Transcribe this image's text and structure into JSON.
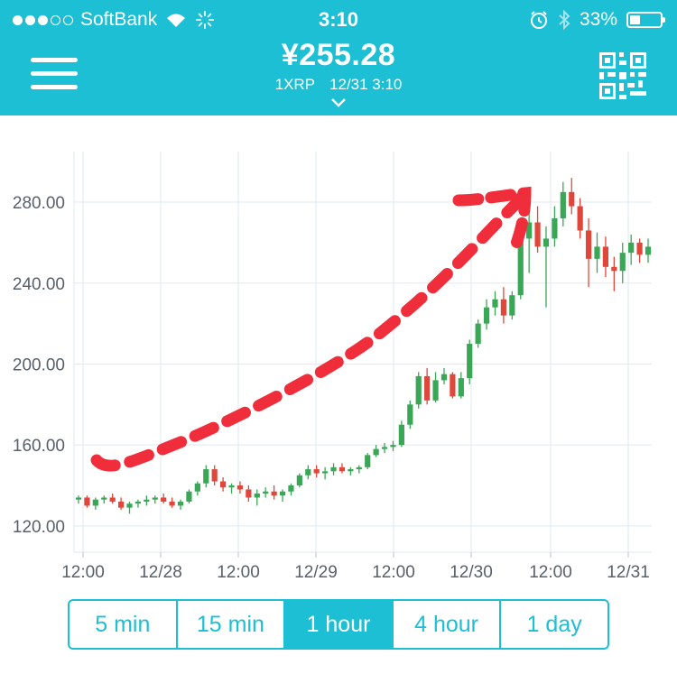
{
  "status_bar": {
    "carrier": "SoftBank",
    "time": "3:10",
    "battery_text": "33%",
    "battery_level": 0.33
  },
  "header": {
    "price": "¥255.28",
    "pair": "1XRP",
    "timestamp": "12/31 3:10"
  },
  "colors": {
    "accent": "#1cbfd3",
    "up": "#3aa757",
    "down": "#e0473a",
    "annotation": "#f02d3a"
  },
  "icons": [
    "menu-icon",
    "qr-code-icon",
    "wifi-icon",
    "activity-icon",
    "alarm-icon",
    "bluetooth-icon",
    "battery-icon",
    "chevron-down-icon"
  ],
  "chart_data": {
    "type": "candlestick",
    "title": "",
    "x_tick_labels": [
      "12:00",
      "12/28",
      "12:00",
      "12/29",
      "12:00",
      "12/30",
      "12:00",
      "12/31"
    ],
    "y_tick_labels": [
      "120.00",
      "160.00",
      "200.00",
      "240.00",
      "280.00"
    ],
    "ylim": [
      107,
      305
    ],
    "interval": "1 hour",
    "grid": true,
    "annotation": "hand-drawn red dashed upward arrow",
    "ohlc": [
      [
        133,
        135,
        131,
        134
      ],
      [
        134,
        135,
        129,
        130
      ],
      [
        130,
        134,
        128,
        133
      ],
      [
        133,
        135,
        131,
        134
      ],
      [
        134,
        136,
        131,
        132
      ],
      [
        132,
        134,
        128,
        129
      ],
      [
        129,
        132,
        126,
        131
      ],
      [
        131,
        133,
        129,
        132
      ],
      [
        132,
        135,
        130,
        133
      ],
      [
        133,
        135,
        131,
        134
      ],
      [
        134,
        136,
        131,
        132
      ],
      [
        132,
        134,
        129,
        130
      ],
      [
        130,
        133,
        128,
        132
      ],
      [
        132,
        138,
        131,
        137
      ],
      [
        137,
        142,
        135,
        141
      ],
      [
        141,
        150,
        139,
        148
      ],
      [
        148,
        150,
        140,
        142
      ],
      [
        142,
        144,
        137,
        139
      ],
      [
        139,
        141,
        136,
        140
      ],
      [
        140,
        142,
        136,
        138
      ],
      [
        138,
        140,
        132,
        134
      ],
      [
        134,
        138,
        130,
        136
      ],
      [
        136,
        139,
        134,
        137
      ],
      [
        137,
        140,
        133,
        135
      ],
      [
        135,
        138,
        132,
        137
      ],
      [
        137,
        141,
        135,
        140
      ],
      [
        140,
        146,
        139,
        145
      ],
      [
        145,
        150,
        143,
        148
      ],
      [
        148,
        150,
        144,
        146
      ],
      [
        146,
        149,
        143,
        147
      ],
      [
        147,
        151,
        145,
        149
      ],
      [
        149,
        151,
        146,
        147
      ],
      [
        147,
        149,
        145,
        148
      ],
      [
        148,
        150,
        146,
        149
      ],
      [
        149,
        156,
        148,
        155
      ],
      [
        155,
        160,
        154,
        158
      ],
      [
        158,
        161,
        156,
        159
      ],
      [
        159,
        162,
        157,
        160
      ],
      [
        160,
        172,
        159,
        170
      ],
      [
        170,
        182,
        168,
        180
      ],
      [
        180,
        196,
        178,
        194
      ],
      [
        194,
        198,
        180,
        182
      ],
      [
        182,
        196,
        181,
        192
      ],
      [
        192,
        198,
        190,
        195
      ],
      [
        195,
        196,
        183,
        184
      ],
      [
        184,
        196,
        183,
        193
      ],
      [
        193,
        212,
        190,
        210
      ],
      [
        210,
        222,
        208,
        220
      ],
      [
        220,
        232,
        217,
        228
      ],
      [
        228,
        236,
        224,
        232
      ],
      [
        232,
        238,
        220,
        224
      ],
      [
        224,
        236,
        222,
        234
      ],
      [
        234,
        266,
        232,
        262
      ],
      [
        262,
        282,
        245,
        270
      ],
      [
        270,
        278,
        255,
        258
      ],
      [
        258,
        268,
        228,
        262
      ],
      [
        262,
        278,
        258,
        272
      ],
      [
        272,
        290,
        268,
        285
      ],
      [
        285,
        292,
        274,
        278
      ],
      [
        278,
        282,
        262,
        266
      ],
      [
        266,
        272,
        238,
        252
      ],
      [
        252,
        265,
        245,
        258
      ],
      [
        258,
        263,
        243,
        248
      ],
      [
        248,
        253,
        236,
        246
      ],
      [
        246,
        260,
        240,
        255
      ],
      [
        255,
        264,
        249,
        260
      ],
      [
        260,
        262,
        250,
        254
      ],
      [
        254,
        262,
        250,
        258
      ]
    ]
  },
  "intervals": [
    {
      "label": "5 min",
      "active": false
    },
    {
      "label": "15 min",
      "active": false
    },
    {
      "label": "1 hour",
      "active": true
    },
    {
      "label": "4 hour",
      "active": false
    },
    {
      "label": "1 day",
      "active": false
    }
  ]
}
